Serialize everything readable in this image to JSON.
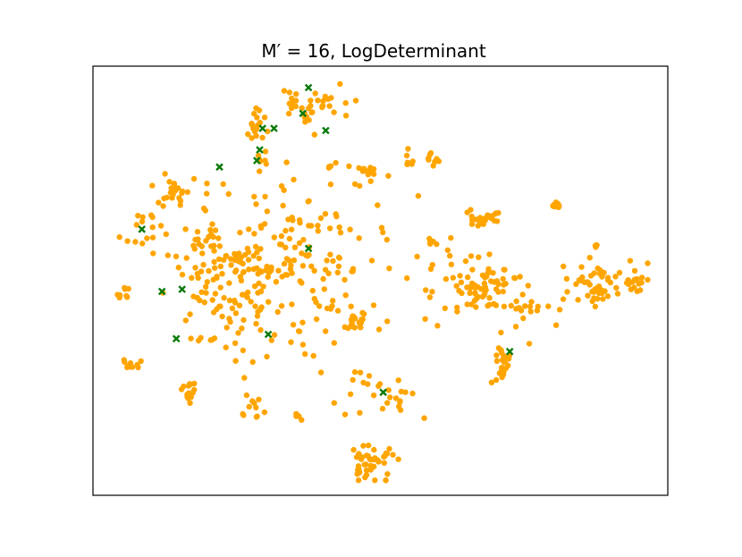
{
  "chart_data": {
    "type": "scatter",
    "title": "M′ = 16, LogDeterminant",
    "xlabel": "",
    "ylabel": "",
    "xlim": [
      0,
      100
    ],
    "ylim": [
      0,
      100
    ],
    "axes_ticks": "none",
    "grid": false,
    "legend": "none",
    "colors": {
      "points": "#FFA500",
      "selected": "#0A7A0A",
      "frame": "#000000"
    },
    "series": [
      {
        "marker": "circle",
        "color": "#FFA500",
        "clusters": [
          {
            "cx": 38.0,
            "cy": 91.0,
            "n": 35,
            "sx": 3.2,
            "sy": 2.0
          },
          {
            "cx": 28.0,
            "cy": 86.0,
            "n": 18,
            "sx": 1.6,
            "sy": 2.3
          },
          {
            "cx": 29.0,
            "cy": 78.5,
            "n": 4,
            "sx": 0.6,
            "sy": 1.2
          },
          {
            "cx": 41.0,
            "cy": 77.0,
            "n": 3,
            "sx": 0.8,
            "sy": 0.5
          },
          {
            "cx": 48.0,
            "cy": 75.5,
            "n": 10,
            "sx": 1.1,
            "sy": 0.6
          },
          {
            "cx": 55.0,
            "cy": 78.0,
            "n": 7,
            "sx": 0.5,
            "sy": 1.4
          },
          {
            "cx": 59.0,
            "cy": 78.5,
            "n": 8,
            "sx": 0.5,
            "sy": 0.8
          },
          {
            "cx": 14.5,
            "cy": 71.0,
            "n": 20,
            "sx": 1.6,
            "sy": 1.3
          },
          {
            "cx": 8.5,
            "cy": 62.0,
            "n": 14,
            "sx": 1.6,
            "sy": 2.2
          },
          {
            "cx": 5.5,
            "cy": 47.0,
            "n": 8,
            "sx": 1.2,
            "sy": 0.7
          },
          {
            "cx": 6.0,
            "cy": 30.5,
            "n": 12,
            "sx": 0.8,
            "sy": 0.6
          },
          {
            "cx": 16.5,
            "cy": 24.0,
            "n": 14,
            "sx": 0.9,
            "sy": 1.1
          },
          {
            "cx": 20.0,
            "cy": 36.0,
            "n": 6,
            "sx": 1.2,
            "sy": 0.4
          },
          {
            "cx": 23.0,
            "cy": 53.0,
            "n": 130,
            "sx": 5.0,
            "sy": 7.5
          },
          {
            "cx": 36.0,
            "cy": 53.0,
            "n": 170,
            "sx": 9.0,
            "sy": 13.0
          },
          {
            "cx": 46.0,
            "cy": 40.0,
            "n": 15,
            "sx": 1.0,
            "sy": 1.0
          },
          {
            "cx": 50.5,
            "cy": 24.0,
            "n": 25,
            "sx": 3.0,
            "sy": 3.0
          },
          {
            "cx": 28.0,
            "cy": 20.5,
            "n": 10,
            "sx": 1.0,
            "sy": 1.3
          },
          {
            "cx": 36.0,
            "cy": 18.5,
            "n": 5,
            "sx": 0.6,
            "sy": 0.6
          },
          {
            "cx": 48.0,
            "cy": 8.0,
            "n": 45,
            "sx": 2.2,
            "sy": 2.5
          },
          {
            "cx": 67.5,
            "cy": 64.5,
            "n": 25,
            "sx": 1.6,
            "sy": 1.1
          },
          {
            "cx": 80.5,
            "cy": 67.5,
            "n": 12,
            "sx": 0.7,
            "sy": 0.4
          },
          {
            "cx": 59.0,
            "cy": 59.0,
            "n": 5,
            "sx": 0.5,
            "sy": 0.5
          },
          {
            "cx": 68.0,
            "cy": 48.0,
            "n": 90,
            "sx": 4.5,
            "sy": 3.5
          },
          {
            "cx": 71.5,
            "cy": 31.0,
            "n": 25,
            "sx": 1.0,
            "sy": 2.0
          },
          {
            "cx": 78.0,
            "cy": 42.0,
            "n": 8,
            "sx": 1.5,
            "sy": 4.0
          },
          {
            "cx": 88.0,
            "cy": 49.0,
            "n": 55,
            "sx": 3.5,
            "sy": 2.5
          },
          {
            "cx": 87.5,
            "cy": 58.0,
            "n": 4,
            "sx": 0.4,
            "sy": 0.4
          },
          {
            "cx": 94.0,
            "cy": 49.5,
            "n": 10,
            "sx": 0.8,
            "sy": 0.6
          }
        ]
      },
      {
        "marker": "x",
        "color": "#0A7A0A",
        "points": [
          [
            37.5,
            95.0
          ],
          [
            36.5,
            89.0
          ],
          [
            40.5,
            85.0
          ],
          [
            29.5,
            85.5
          ],
          [
            31.5,
            85.5
          ],
          [
            29.0,
            80.5
          ],
          [
            28.5,
            78.0
          ],
          [
            22.0,
            76.5
          ],
          [
            8.5,
            62.0
          ],
          [
            37.5,
            57.5
          ],
          [
            12.0,
            47.5
          ],
          [
            15.5,
            48.0
          ],
          [
            14.5,
            36.5
          ],
          [
            30.5,
            37.5
          ],
          [
            72.5,
            33.5
          ],
          [
            50.5,
            24.0
          ]
        ]
      }
    ]
  }
}
